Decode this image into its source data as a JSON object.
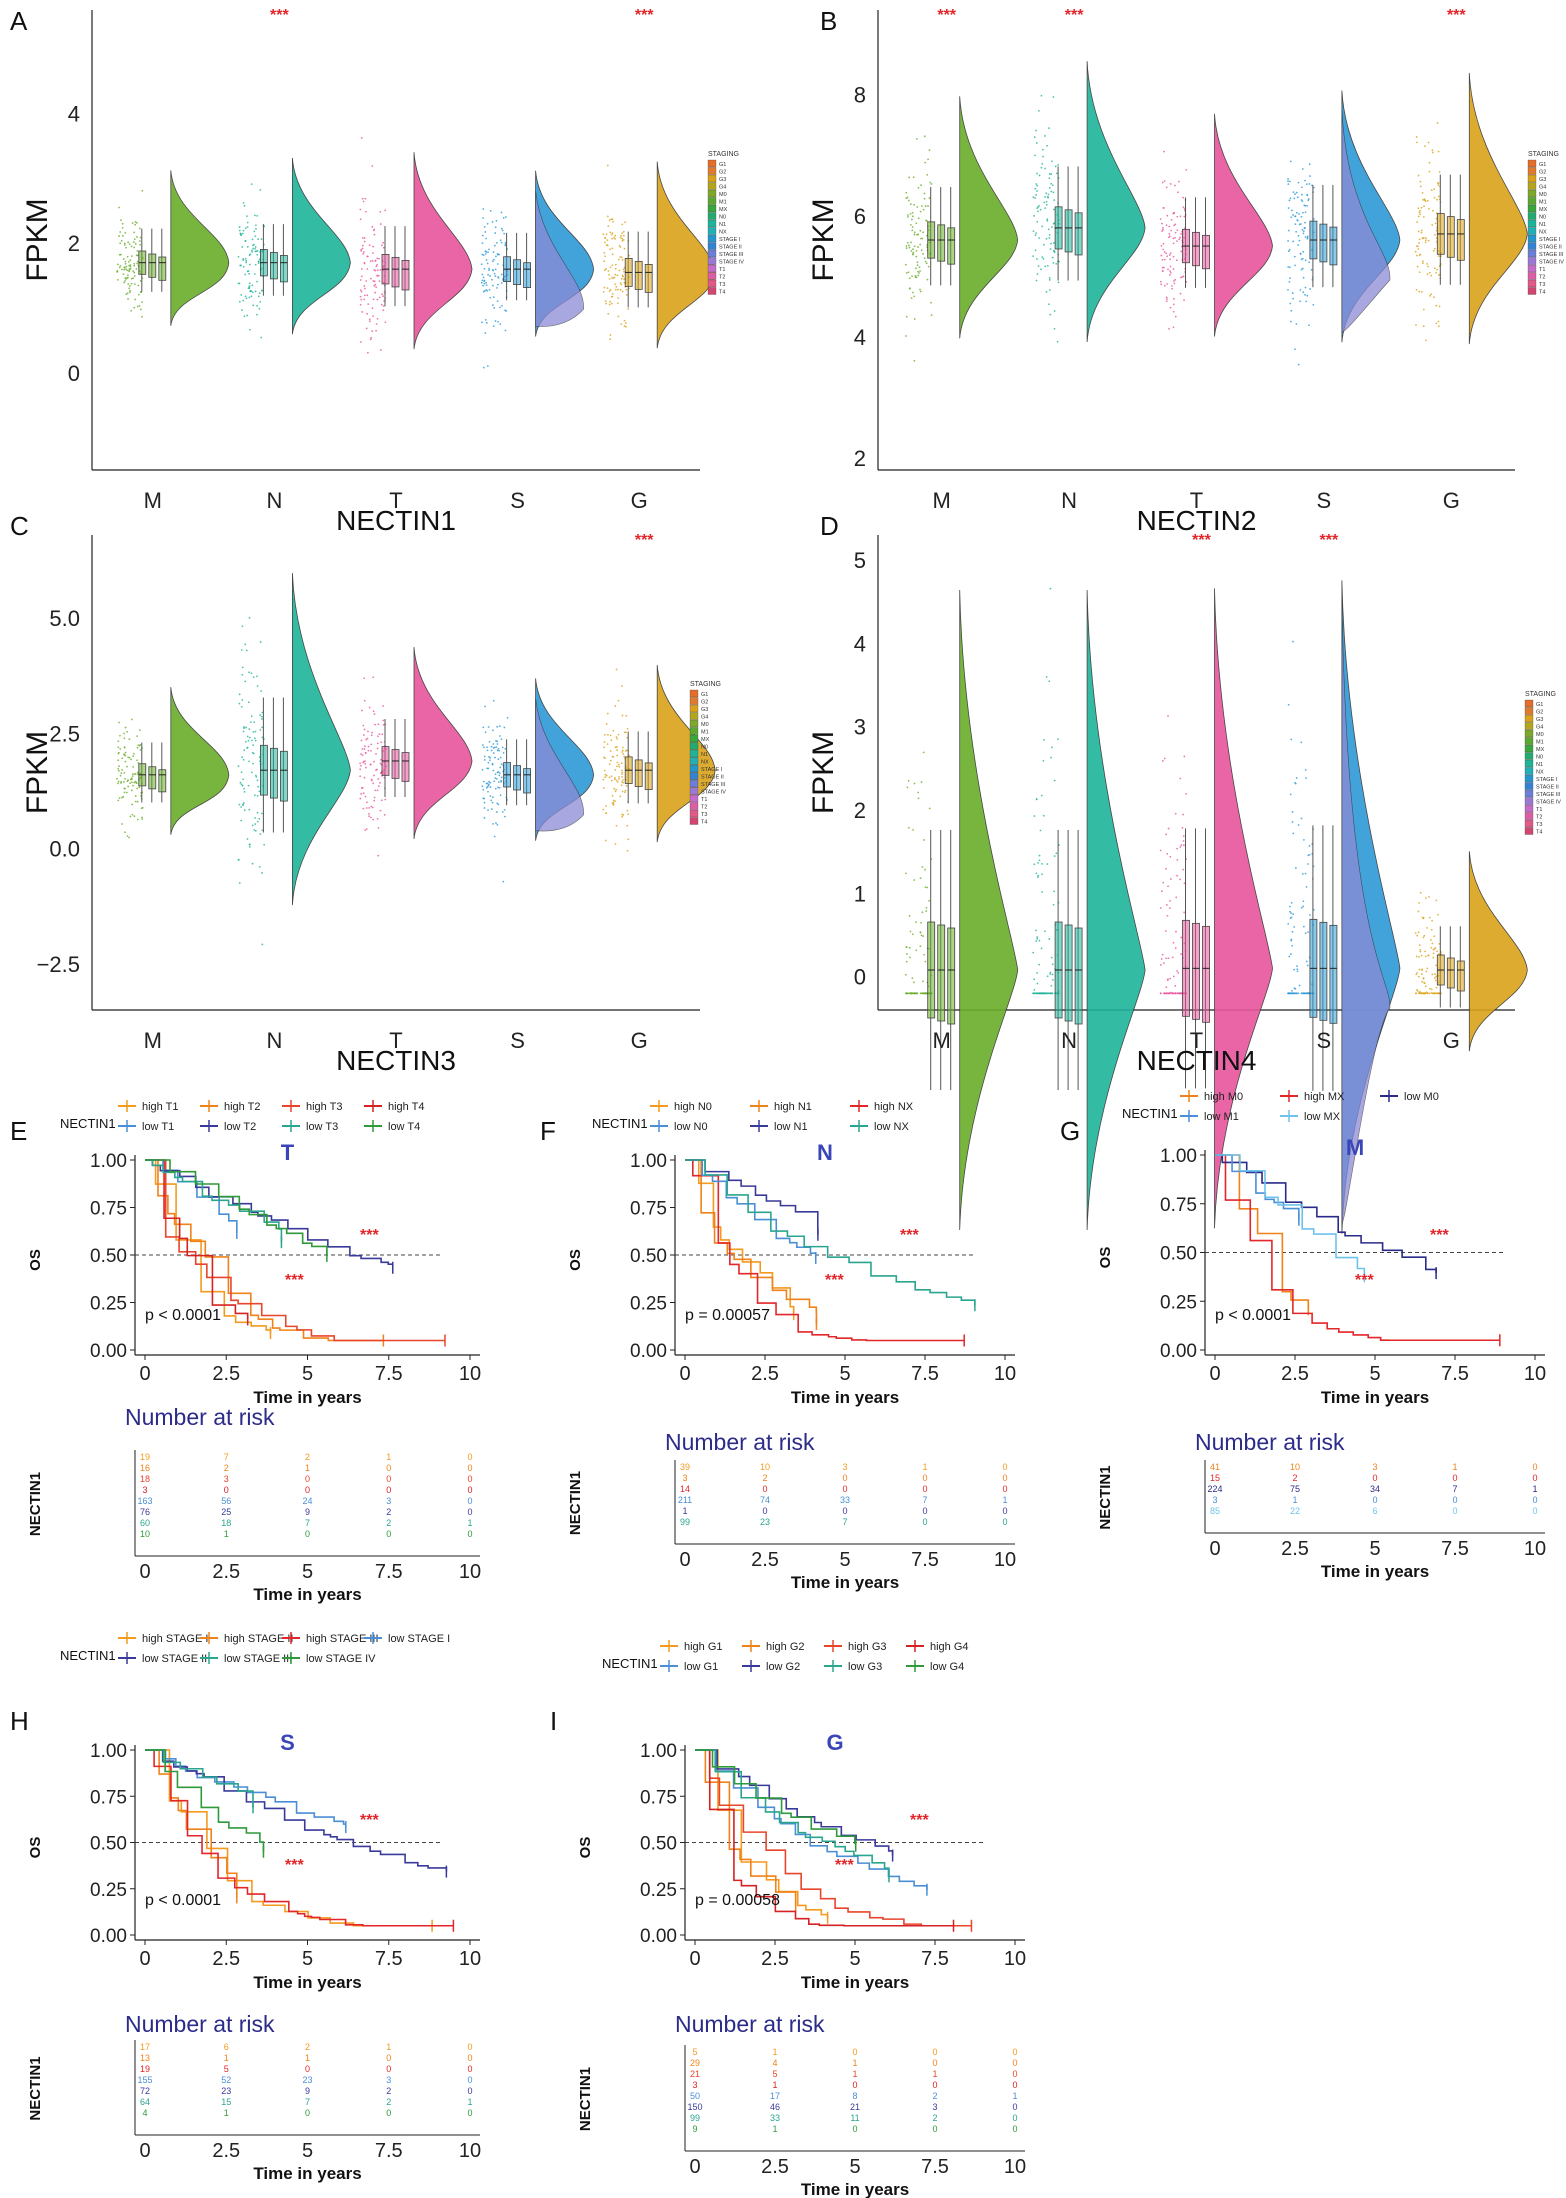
{
  "figure": {
    "colors": {
      "M": "#6aae2a",
      "N": "#1fb49a",
      "T": "#e8559c",
      "S": "#2d9ad6",
      "G": "#d9a21a",
      "violin_S_second": "#8c8ad6",
      "sig": "#e3262a",
      "risk_title": "#2b2b8a",
      "letter_title": "#3a45b8"
    },
    "legend_staging_title": "STAGING",
    "legend_staging_items": [
      "G1",
      "G2",
      "G3",
      "G4",
      "M0",
      "M1",
      "MX",
      "N0",
      "N1",
      "NX",
      "STAGE I",
      "STAGE II",
      "STAGE III",
      "STAGE IV",
      "T1",
      "T2",
      "T3",
      "T4"
    ]
  },
  "violins": [
    {
      "letter": "A",
      "gene": "NECTIN1",
      "ylabel": "FPKM",
      "yticks": [
        "0",
        "2",
        "4"
      ],
      "ymin": -1.5,
      "ymax": 5.6,
      "tickvals": [
        0,
        2,
        4
      ],
      "cats": [
        "M",
        "N",
        "T",
        "S",
        "G"
      ],
      "centers": [
        1.7,
        1.7,
        1.6,
        1.6,
        1.55
      ],
      "spreads": [
        1.5,
        1.7,
        1.9,
        1.6,
        1.8
      ],
      "sig": [
        false,
        true,
        false,
        false,
        true
      ],
      "sig_label": "***"
    },
    {
      "letter": "B",
      "gene": "NECTIN2",
      "ylabel": "FPKM",
      "yticks": [
        "2",
        "4",
        "6",
        "8"
      ],
      "ymin": 1.8,
      "ymax": 9.4,
      "tickvals": [
        2,
        4,
        6,
        8
      ],
      "cats": [
        "M",
        "N",
        "T",
        "S",
        "G"
      ],
      "centers": [
        5.6,
        5.8,
        5.5,
        5.6,
        5.7
      ],
      "spreads": [
        2.5,
        2.9,
        2.3,
        2.6,
        2.8
      ],
      "sig": [
        true,
        true,
        false,
        false,
        true
      ],
      "sig_label": "***"
    },
    {
      "letter": "C",
      "gene": "NECTIN3",
      "ylabel": "FPKM",
      "yticks": [
        "−2.5",
        "0.0",
        "2.5",
        "5.0"
      ],
      "ymin": -3.5,
      "ymax": 6.8,
      "tickvals": [
        -2.5,
        0,
        2.5,
        5
      ],
      "cats": [
        "M",
        "N",
        "T",
        "S",
        "G"
      ],
      "centers": [
        1.6,
        1.7,
        1.9,
        1.6,
        1.7
      ],
      "spreads": [
        2.0,
        4.5,
        2.6,
        2.2,
        2.4
      ],
      "sig": [
        false,
        false,
        false,
        false,
        true
      ],
      "sig_label": "***"
    },
    {
      "letter": "D",
      "gene": "NECTIN4",
      "ylabel": "FPKM",
      "yticks": [
        "0",
        "1",
        "2",
        "3",
        "4",
        "5"
      ],
      "ymin": -0.4,
      "ymax": 5.3,
      "tickvals": [
        0,
        1,
        2,
        3,
        4,
        5
      ],
      "cats": [
        "M",
        "N",
        "T",
        "S",
        "G"
      ],
      "centers": [
        0.08,
        0.08,
        0.1,
        0.1,
        0.08
      ],
      "spreads": [
        4.8,
        4.8,
        4.8,
        4.9,
        1.5
      ],
      "sig": [
        false,
        false,
        true,
        true,
        false
      ],
      "sig_label": "***"
    }
  ],
  "km": [
    {
      "letter": "E",
      "title": "T",
      "legend_title": "NECTIN1",
      "pval": "p < 0.0001",
      "groups": [
        {
          "label": "high T1",
          "color": "#f39a1f"
        },
        {
          "label": "high T2",
          "color": "#f0821a"
        },
        {
          "label": "high T3",
          "color": "#e8452c"
        },
        {
          "label": "high T4",
          "color": "#d62222"
        },
        {
          "label": "low T1",
          "color": "#4a8fd6"
        },
        {
          "label": "low T2",
          "color": "#3a3a9a"
        },
        {
          "label": "low T3",
          "color": "#2aa58f"
        },
        {
          "label": "low T4",
          "color": "#2e9a3a"
        }
      ],
      "risk": [
        [
          "19",
          "7",
          "2",
          "1",
          "0"
        ],
        [
          "16",
          "2",
          "1",
          "0",
          "0"
        ],
        [
          "18",
          "3",
          "0",
          "0",
          "0"
        ],
        [
          "3",
          "0",
          "0",
          "0",
          "0"
        ],
        [
          "163",
          "56",
          "24",
          "3",
          "0"
        ],
        [
          "76",
          "25",
          "9",
          "2",
          "0"
        ],
        [
          "60",
          "18",
          "7",
          "2",
          "1"
        ],
        [
          "10",
          "1",
          "0",
          "0",
          "0"
        ]
      ]
    },
    {
      "letter": "F",
      "title": "N",
      "legend_title": "NECTIN1",
      "pval": "p = 0.00057",
      "groups": [
        {
          "label": "high N0",
          "color": "#f39a1f"
        },
        {
          "label": "high N1",
          "color": "#f0821a"
        },
        {
          "label": "high NX",
          "color": "#e3262a"
        },
        {
          "label": "low N0",
          "color": "#4a8fd6"
        },
        {
          "label": "low N1",
          "color": "#3a3a9a"
        },
        {
          "label": "low NX",
          "color": "#2aa58f"
        }
      ],
      "risk": [
        [
          "39",
          "10",
          "3",
          "1",
          "0"
        ],
        [
          "3",
          "2",
          "0",
          "0",
          "0"
        ],
        [
          "14",
          "0",
          "0",
          "0",
          "0"
        ],
        [
          "211",
          "74",
          "33",
          "7",
          "1"
        ],
        [
          "1",
          "0",
          "0",
          "0",
          "0"
        ],
        [
          "99",
          "23",
          "7",
          "0",
          "0"
        ]
      ]
    },
    {
      "letter": "G",
      "title": "M",
      "legend_title": "NECTIN1",
      "pval": "p < 0.0001",
      "groups": [
        {
          "label": "high M0",
          "color": "#f0821a"
        },
        {
          "label": "high MX",
          "color": "#e3262a"
        },
        {
          "label": "low M0",
          "color": "#2b2b8a"
        },
        {
          "label": "low M1",
          "color": "#4a8fd6"
        },
        {
          "label": "low MX",
          "color": "#6ec3ec"
        }
      ],
      "risk": [
        [
          "41",
          "10",
          "3",
          "1",
          "0"
        ],
        [
          "15",
          "2",
          "0",
          "0",
          "0"
        ],
        [
          "224",
          "75",
          "34",
          "7",
          "1"
        ],
        [
          "3",
          "1",
          "0",
          "0",
          "0"
        ],
        [
          "85",
          "22",
          "6",
          "0",
          "0"
        ]
      ]
    },
    {
      "letter": "H",
      "title": "S",
      "legend_title": "NECTIN1",
      "pval": "p < 0.0001",
      "groups": [
        {
          "label": "high STAGE I",
          "color": "#f39a1f"
        },
        {
          "label": "high STAGE II",
          "color": "#f0821a"
        },
        {
          "label": "high STAGE III",
          "color": "#e3262a"
        },
        {
          "label": "low STAGE I",
          "color": "#4a8fd6"
        },
        {
          "label": "low STAGE II",
          "color": "#3a3a9a"
        },
        {
          "label": "low STAGE III",
          "color": "#2aa58f"
        },
        {
          "label": "low STAGE IV",
          "color": "#2e9a3a"
        }
      ],
      "risk": [
        [
          "17",
          "6",
          "2",
          "1",
          "0"
        ],
        [
          "13",
          "1",
          "1",
          "0",
          "0"
        ],
        [
          "19",
          "5",
          "0",
          "0",
          "0"
        ],
        [
          "155",
          "52",
          "23",
          "3",
          "0"
        ],
        [
          "72",
          "23",
          "9",
          "2",
          "0"
        ],
        [
          "64",
          "15",
          "7",
          "2",
          "1"
        ],
        [
          "4",
          "1",
          "0",
          "0",
          "0"
        ]
      ]
    },
    {
      "letter": "I",
      "title": "G",
      "legend_title": "NECTIN1",
      "pval": "p = 0.00058",
      "groups": [
        {
          "label": "high G1",
          "color": "#f39a1f"
        },
        {
          "label": "high G2",
          "color": "#f0821a"
        },
        {
          "label": "high G3",
          "color": "#e8452c"
        },
        {
          "label": "high G4",
          "color": "#d62222"
        },
        {
          "label": "low G1",
          "color": "#4a8fd6"
        },
        {
          "label": "low G2",
          "color": "#3a3a9a"
        },
        {
          "label": "low G3",
          "color": "#2aa58f"
        },
        {
          "label": "low G4",
          "color": "#2e9a3a"
        }
      ],
      "risk": [
        [
          "5",
          "1",
          "0",
          "0",
          "0"
        ],
        [
          "29",
          "4",
          "1",
          "0",
          "0"
        ],
        [
          "21",
          "5",
          "1",
          "1",
          "0"
        ],
        [
          "3",
          "1",
          "0",
          "0",
          "0"
        ],
        [
          "50",
          "17",
          "8",
          "2",
          "1"
        ],
        [
          "150",
          "46",
          "21",
          "3",
          "0"
        ],
        [
          "99",
          "33",
          "11",
          "2",
          "0"
        ],
        [
          "9",
          "1",
          "0",
          "0",
          "0"
        ]
      ]
    }
  ],
  "km_common": {
    "ylabel": "OS",
    "xlabel": "Time in years",
    "risk_title": "Number at risk",
    "risk_ylabel": "NECTIN1",
    "xticks": [
      "0",
      "2.5",
      "5",
      "7.5",
      "10"
    ],
    "yticks": [
      "0.00",
      "0.25",
      "0.50",
      "0.75",
      "1.00"
    ],
    "sig_label": "***"
  },
  "chart_data": [
    {
      "type": "violin",
      "panel": "A",
      "title": "",
      "xlabel": "NECTIN1",
      "ylabel": "FPKM",
      "categories": [
        "M",
        "N",
        "T",
        "S",
        "G"
      ],
      "significant": [
        "N",
        "G"
      ]
    },
    {
      "type": "violin",
      "panel": "B",
      "title": "",
      "xlabel": "NECTIN2",
      "ylabel": "FPKM",
      "categories": [
        "M",
        "N",
        "T",
        "S",
        "G"
      ],
      "significant": [
        "M",
        "N",
        "G"
      ]
    },
    {
      "type": "violin",
      "panel": "C",
      "title": "",
      "xlabel": "NECTIN3",
      "ylabel": "FPKM",
      "categories": [
        "M",
        "N",
        "T",
        "S",
        "G"
      ],
      "significant": [
        "G"
      ]
    },
    {
      "type": "violin",
      "panel": "D",
      "title": "",
      "xlabel": "NECTIN4",
      "ylabel": "FPKM",
      "categories": [
        "M",
        "N",
        "T",
        "S",
        "G"
      ],
      "significant": [
        "T",
        "S"
      ]
    },
    {
      "type": "line",
      "panel": "E",
      "title": "T",
      "xlabel": "Time in years",
      "ylabel": "OS",
      "xlim": [
        0,
        10
      ],
      "ylim": [
        0,
        1
      ],
      "pvalue": "p < 0.0001"
    },
    {
      "type": "line",
      "panel": "F",
      "title": "N",
      "xlabel": "Time in years",
      "ylabel": "OS",
      "xlim": [
        0,
        10
      ],
      "ylim": [
        0,
        1
      ],
      "pvalue": "p = 0.00057"
    },
    {
      "type": "line",
      "panel": "G",
      "title": "M",
      "xlabel": "Time in years",
      "ylabel": "OS",
      "xlim": [
        0,
        10
      ],
      "ylim": [
        0,
        1
      ],
      "pvalue": "p < 0.0001"
    },
    {
      "type": "line",
      "panel": "H",
      "title": "S",
      "xlabel": "Time in years",
      "ylabel": "OS",
      "xlim": [
        0,
        10
      ],
      "ylim": [
        0,
        1
      ],
      "pvalue": "p < 0.0001"
    },
    {
      "type": "line",
      "panel": "I",
      "title": "G",
      "xlabel": "Time in years",
      "ylabel": "OS",
      "xlim": [
        0,
        10
      ],
      "ylim": [
        0,
        1
      ],
      "pvalue": "p = 0.00058"
    }
  ]
}
